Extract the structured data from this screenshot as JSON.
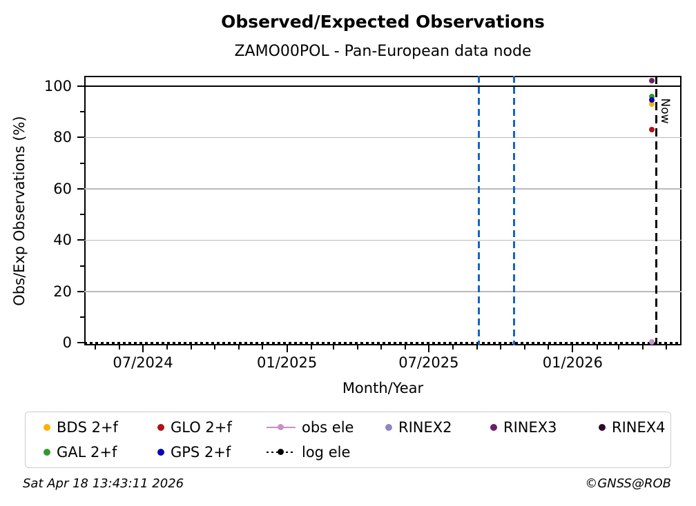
{
  "title": "Observed/Expected Observations",
  "subtitle": "ZAMO00POL - Pan-European data node",
  "now_label": "Now",
  "footer": {
    "timestamp": "Sat Apr 18 13:43:11 2026",
    "copyright": "©GNSS@ROB"
  },
  "legend": {
    "items": [
      {
        "label": "BDS 2+f",
        "color": "#FFB000",
        "marker": "dot",
        "row": 1,
        "col": 1
      },
      {
        "label": "GAL 2+f",
        "color": "#2E9B2E",
        "marker": "dot",
        "row": 2,
        "col": 1
      },
      {
        "label": "GLO 2+f",
        "color": "#B11116",
        "marker": "dot",
        "row": 1,
        "col": 2
      },
      {
        "label": "GPS 2+f",
        "color": "#0000B4",
        "marker": "dot",
        "row": 2,
        "col": 2
      },
      {
        "label": "obs ele",
        "color": "#C98FC9",
        "marker": "line-dot",
        "row": 1,
        "col": 3
      },
      {
        "label": "log ele",
        "color": "#000000",
        "marker": "dotted-dot",
        "row": 2,
        "col": 3
      },
      {
        "label": "RINEX2",
        "color": "#8C86C8",
        "marker": "dot",
        "row": 1,
        "col": 4
      },
      {
        "label": "RINEX3",
        "color": "#6B1E6B",
        "marker": "dot",
        "row": 1,
        "col": 5
      },
      {
        "label": "RINEX4",
        "color": "#2D0A28",
        "marker": "dot",
        "row": 1,
        "col": 6
      }
    ]
  },
  "chart_data": {
    "type": "scatter",
    "title": "Observed/Expected Observations",
    "subtitle": "ZAMO00POL - Pan-European data node",
    "xlabel": "Month/Year",
    "ylabel": "Obs/Exp Observations (%)",
    "xlim": [
      "2024-04-17",
      "2026-05-20"
    ],
    "ylim": [
      -1,
      104
    ],
    "x_ticks": [
      {
        "date": "2024-07-01",
        "label": "07/2024"
      },
      {
        "date": "2025-01-01",
        "label": "01/2025"
      },
      {
        "date": "2025-07-01",
        "label": "07/2025"
      },
      {
        "date": "2026-01-01",
        "label": "01/2026"
      }
    ],
    "x_minor_tick_interval": "1 month",
    "y_ticks": [
      0,
      20,
      40,
      60,
      80,
      100
    ],
    "y_minor_ticks": [
      10,
      30,
      50,
      70,
      90
    ],
    "grid": "horizontal gray gridlines at 20/40/60/80",
    "grid_color": "#bababa",
    "hline_100": {
      "y": 100,
      "color": "#000000",
      "style": "solid"
    },
    "vlines": [
      {
        "x": "2025-09-03",
        "color": "#1464C4",
        "style": "dashed",
        "label": ""
      },
      {
        "x": "2025-10-18",
        "color": "#1464C4",
        "style": "dashed",
        "label": ""
      },
      {
        "x": "2026-04-18",
        "color": "#000000",
        "style": "dashed",
        "label": "Now"
      }
    ],
    "series": [
      {
        "name": "BDS 2+f",
        "color": "#FFB000",
        "points": [
          {
            "x": "2026-04-12",
            "y": 93
          }
        ]
      },
      {
        "name": "GAL 2+f",
        "color": "#2E9B2E",
        "points": [
          {
            "x": "2026-04-12",
            "y": 96
          }
        ]
      },
      {
        "name": "GLO 2+f",
        "color": "#B11116",
        "points": [
          {
            "x": "2026-04-12",
            "y": 83
          }
        ]
      },
      {
        "name": "GPS 2+f",
        "color": "#0000B4",
        "points": [
          {
            "x": "2026-04-12",
            "y": 94.7
          }
        ]
      },
      {
        "name": "obs ele",
        "color": "#C98FC9",
        "points": [
          {
            "x": "2026-04-12",
            "y": 0.4
          }
        ]
      },
      {
        "name": "log ele",
        "color": "#000000",
        "style": "dotted-line",
        "y_constant": 0,
        "points": [
          {
            "x": "2024-04-17",
            "y": 0
          },
          {
            "x": "2026-05-20",
            "y": 0
          }
        ]
      },
      {
        "name": "RINEX2",
        "color": "#8C86C8",
        "points": []
      },
      {
        "name": "RINEX3",
        "color": "#6B1E6B",
        "points": [
          {
            "x": "2026-04-12",
            "y": 102
          }
        ]
      },
      {
        "name": "RINEX4",
        "color": "#2D0A28",
        "points": []
      }
    ],
    "legend_position": "bottom, 6 columns, 2 rows"
  }
}
